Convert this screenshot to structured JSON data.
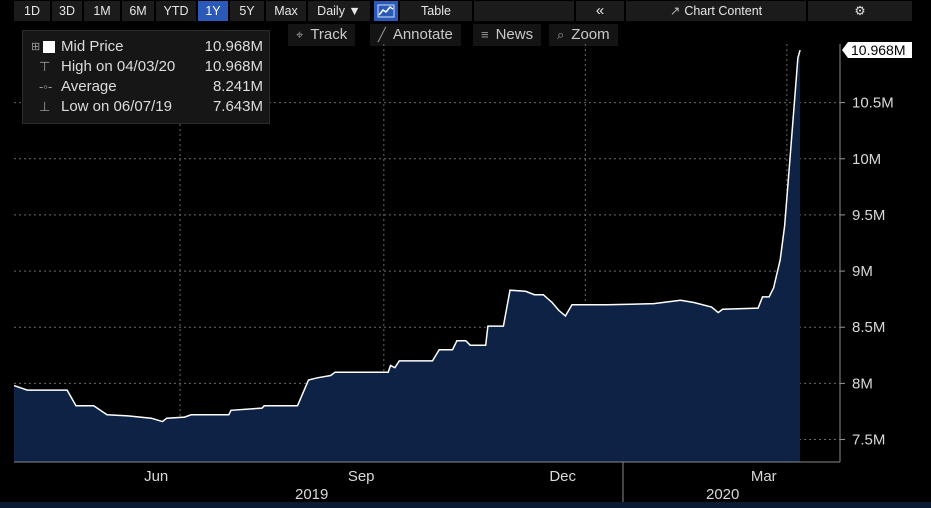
{
  "toolbar": {
    "buttons": [
      {
        "label": "1D",
        "active": false
      },
      {
        "label": "3D",
        "active": false
      },
      {
        "label": "1M",
        "active": false
      },
      {
        "label": "6M",
        "active": false
      },
      {
        "label": "YTD",
        "active": false
      },
      {
        "label": "1Y",
        "active": true
      },
      {
        "label": "5Y",
        "active": false
      },
      {
        "label": "Max",
        "active": false
      }
    ],
    "period": "Daily ▼",
    "chart_icon": "line-chart-icon",
    "table": "Table",
    "collapse": "«",
    "chart_content": "Chart Content",
    "gear_icon": "gear-icon"
  },
  "tools": [
    {
      "label": "Track",
      "icon": "crosshair-icon"
    },
    {
      "label": "Annotate",
      "icon": "pencil-icon"
    },
    {
      "label": "News",
      "icon": "news-icon"
    },
    {
      "label": "Zoom",
      "icon": "zoom-icon"
    }
  ],
  "legend": {
    "rows": [
      {
        "label": "Mid Price",
        "value": "10.968M",
        "icon": "square-swatch-icon"
      },
      {
        "label": "High on 04/03/20",
        "value": "10.968M",
        "icon": "high-marker-icon"
      },
      {
        "label": "Average",
        "value": "8.241M",
        "icon": "average-marker-icon"
      },
      {
        "label": "Low on 06/07/19",
        "value": "7.643M",
        "icon": "low-marker-icon"
      }
    ]
  },
  "colors": {
    "line": "#ffffff",
    "fill": "#0d2244",
    "grid": "#6a6a6a",
    "background": "#000000",
    "active": "#2a59b7"
  },
  "chart_data": {
    "type": "area",
    "series": [
      {
        "name": "Mid Price",
        "points": [
          [
            "2019-04-03",
            7.98
          ],
          [
            "2019-04-07",
            7.94
          ],
          [
            "2019-04-25",
            7.94
          ],
          [
            "2019-04-29",
            7.8
          ],
          [
            "2019-05-07",
            7.8
          ],
          [
            "2019-05-13",
            7.72
          ],
          [
            "2019-05-23",
            7.71
          ],
          [
            "2019-06-02",
            7.69
          ],
          [
            "2019-06-07",
            7.66
          ],
          [
            "2019-06-09",
            7.69
          ],
          [
            "2019-06-17",
            7.7
          ],
          [
            "2019-06-20",
            7.72
          ],
          [
            "2019-07-07",
            7.72
          ],
          [
            "2019-07-08",
            7.76
          ],
          [
            "2019-07-22",
            7.78
          ],
          [
            "2019-07-23",
            7.8
          ],
          [
            "2019-08-07",
            7.8
          ],
          [
            "2019-08-12",
            8.03
          ],
          [
            "2019-08-16",
            8.05
          ],
          [
            "2019-08-22",
            8.07
          ],
          [
            "2019-08-24",
            8.1
          ],
          [
            "2019-09-17",
            8.1
          ],
          [
            "2019-09-18",
            8.16
          ],
          [
            "2019-09-20",
            8.14
          ],
          [
            "2019-09-22",
            8.2
          ],
          [
            "2019-10-07",
            8.2
          ],
          [
            "2019-10-10",
            8.3
          ],
          [
            "2019-10-16",
            8.3
          ],
          [
            "2019-10-18",
            8.38
          ],
          [
            "2019-10-22",
            8.38
          ],
          [
            "2019-10-24",
            8.34
          ],
          [
            "2019-10-31",
            8.34
          ],
          [
            "2019-11-01",
            8.51
          ],
          [
            "2019-11-08",
            8.51
          ],
          [
            "2019-11-11",
            8.83
          ],
          [
            "2019-11-18",
            8.82
          ],
          [
            "2019-11-22",
            8.79
          ],
          [
            "2019-11-26",
            8.79
          ],
          [
            "2019-11-30",
            8.72
          ],
          [
            "2019-12-03",
            8.65
          ],
          [
            "2019-12-06",
            8.6
          ],
          [
            "2019-12-09",
            8.7
          ],
          [
            "2019-12-25",
            8.7
          ],
          [
            "2020-01-15",
            8.71
          ],
          [
            "2020-01-27",
            8.74
          ],
          [
            "2020-02-02",
            8.72
          ],
          [
            "2020-02-10",
            8.68
          ],
          [
            "2020-02-13",
            8.63
          ],
          [
            "2020-02-15",
            8.66
          ],
          [
            "2020-03-02",
            8.67
          ],
          [
            "2020-03-04",
            8.77
          ],
          [
            "2020-03-07",
            8.77
          ],
          [
            "2020-03-09",
            8.85
          ],
          [
            "2020-03-12",
            9.1
          ],
          [
            "2020-03-14",
            9.4
          ],
          [
            "2020-03-16",
            9.9
          ],
          [
            "2020-03-18",
            10.4
          ],
          [
            "2020-03-20",
            10.9
          ],
          [
            "2020-03-21",
            10.968
          ]
        ]
      }
    ],
    "x_ticks": [
      "Jun",
      "Sep",
      "Dec",
      "Mar"
    ],
    "x_groups": [
      "2019",
      "2020"
    ],
    "y_ticks": [
      "7.5M",
      "8M",
      "8.5M",
      "9M",
      "9.5M",
      "10M",
      "10.5M"
    ],
    "last_value_label": "10.968M",
    "ylim": [
      7.3,
      11.2
    ],
    "grid": true
  }
}
